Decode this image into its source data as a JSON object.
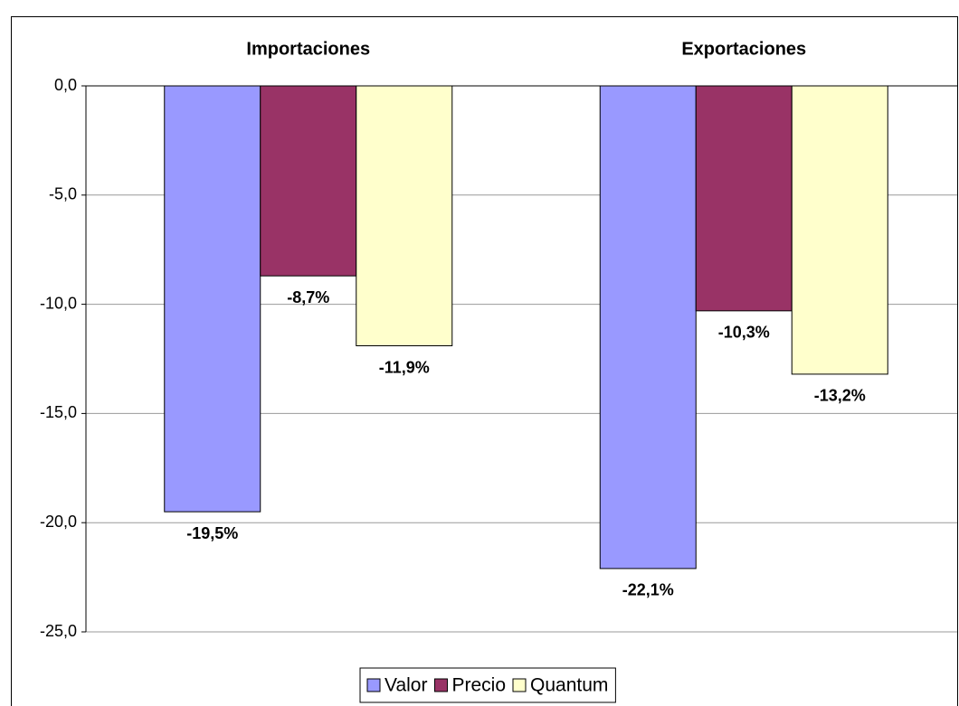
{
  "chart_data": {
    "type": "bar",
    "categories": [
      "Importaciones",
      "Exportaciones"
    ],
    "series": [
      {
        "name": "Valor",
        "color": "#9999ff",
        "values": [
          -19.5,
          -22.1
        ],
        "value_labels": [
          "-19,5%",
          "-22,1%"
        ]
      },
      {
        "name": "Precio",
        "color": "#993366",
        "values": [
          -8.7,
          -10.3
        ],
        "value_labels": [
          "-8,7%",
          "-10,3%"
        ]
      },
      {
        "name": "Quantum",
        "color": "#ffffcc",
        "values": [
          -11.9,
          -13.2
        ],
        "value_labels": [
          "-11,9%",
          "-13,2%"
        ]
      }
    ],
    "ylim": [
      -25,
      0
    ],
    "yticks": [
      {
        "value": 0,
        "label": "0,0"
      },
      {
        "value": -5,
        "label": "-5,0"
      },
      {
        "value": -10,
        "label": "-10,0"
      },
      {
        "value": -15,
        "label": "-15,0"
      },
      {
        "value": -20,
        "label": "-20,0"
      },
      {
        "value": -25,
        "label": "-25,0"
      }
    ],
    "grid": true,
    "legend": "bottom"
  }
}
